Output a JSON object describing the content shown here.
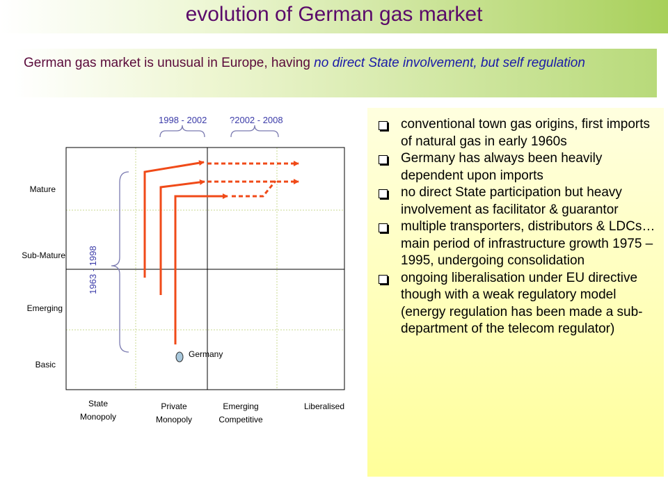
{
  "title": "evolution of German gas market",
  "subtitle": {
    "plain": "German gas market is unusual in Europe, having ",
    "italic": "no direct State involvement, but self regulation"
  },
  "diagram": {
    "period_labels": [
      "1998 - 2002",
      "?2002 - 2008"
    ],
    "vertical_period_label": "1963 - 1998",
    "y_levels": [
      "Mature",
      "Sub-Mature",
      "Emerging",
      "Basic"
    ],
    "x_stages": [
      "State Monopoly",
      "Private Monopoly",
      "Emerging Competitive",
      "Liberalised"
    ],
    "marker_label": "Germany",
    "colors": {
      "arrow": "#f04a18",
      "grid": "#000000",
      "dotted": "#c8d890",
      "brace": "#7a7ab0",
      "marker": "#a8c8dc"
    }
  },
  "bullets": [
    "conventional town gas origins, first imports of natural gas in early 1960s",
    "Germany has always been heavily dependent upon imports",
    "no direct State participation but heavy involvement as facilitator & guarantor",
    "multiple transporters, distributors & LDCs…main period of infrastructure growth 1975 – 1995, undergoing consolidation",
    "ongoing liberalisation under EU directive though with a weak regulatory model (energy regulation has been made a sub-department of the telecom regulator)"
  ]
}
